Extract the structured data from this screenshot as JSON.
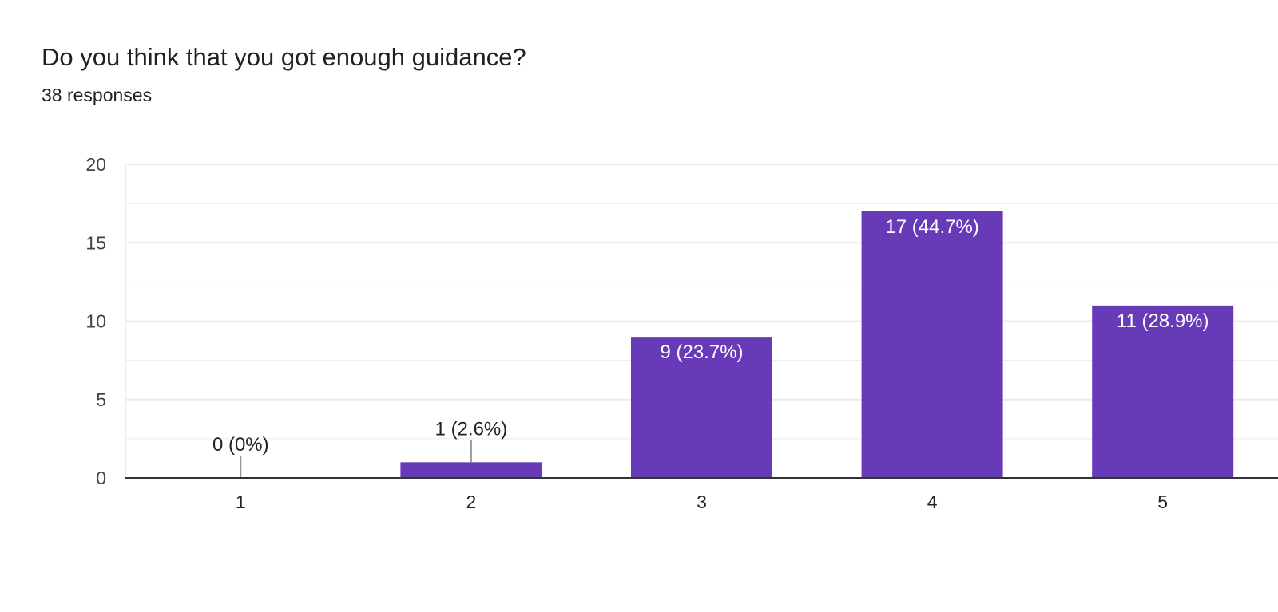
{
  "question": {
    "title": "Do you think that you got enough guidance?",
    "responses": "38 responses"
  },
  "colors": {
    "bar": "#673ab7",
    "grid": "#ebebeb",
    "axis": "#333333",
    "tick_text": "#444444",
    "label_inside": "#ffffff",
    "label_outside": "#222222",
    "leader": "#999999"
  },
  "chart_data": {
    "type": "bar",
    "categories": [
      "1",
      "2",
      "3",
      "4",
      "5"
    ],
    "values": [
      0,
      1,
      9,
      17,
      11
    ],
    "data_labels": [
      "0 (0%)",
      "1 (2.6%)",
      "9 (23.7%)",
      "17 (44.7%)",
      "11 (28.9%)"
    ],
    "title": "Do you think that you got enough guidance?",
    "subtitle": "38 responses",
    "xlabel": "",
    "ylabel": "",
    "ylim": [
      0,
      20
    ],
    "yticks": [
      0,
      5,
      10,
      15,
      20
    ],
    "grid": true,
    "legend": "none"
  }
}
